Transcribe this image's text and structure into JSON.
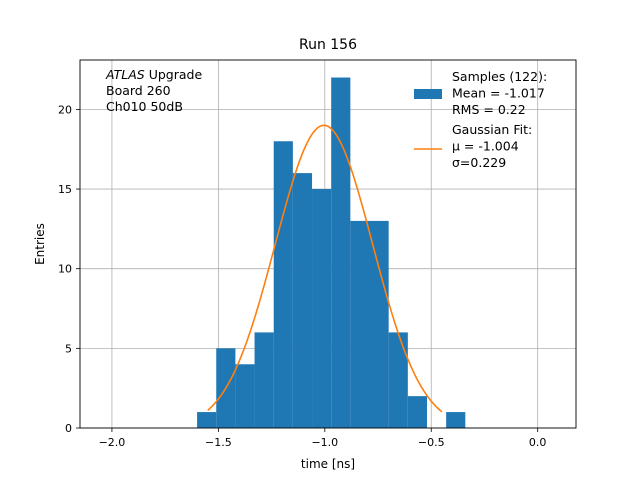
{
  "chart_data": {
    "type": "bar",
    "title": "Run 156",
    "xlabel": "time [ns]",
    "ylabel": "Entries",
    "xlim": [
      -2.15,
      0.18
    ],
    "ylim": [
      0,
      23.1
    ],
    "xticks": [
      -2.0,
      -1.5,
      -1.0,
      -0.5,
      0.0
    ],
    "xtick_labels": [
      "−2.0",
      "−1.5",
      "−1.0",
      "−0.5",
      "0.0"
    ],
    "yticks": [
      0,
      5,
      10,
      15,
      20
    ],
    "ytick_labels": [
      "0",
      "5",
      "10",
      "15",
      "20"
    ],
    "grid": true,
    "legend_position": "top-right",
    "bar_color": "#1f77b4",
    "fit_color": "#ff7f0e",
    "annotation": {
      "lines": [
        {
          "italic": "ATLAS",
          "rest": " Upgrade"
        },
        {
          "italic": "",
          "rest": " Board 260"
        },
        {
          "italic": "",
          "rest": " Ch010 50dB"
        }
      ]
    },
    "histogram": {
      "bin_edges": [
        -1.6,
        -1.51,
        -1.42,
        -1.33,
        -1.24,
        -1.15,
        -1.06,
        -0.97,
        -0.88,
        -0.79,
        -0.7,
        -0.61,
        -0.52,
        -0.43,
        -0.34
      ],
      "counts": [
        1,
        5,
        4,
        6,
        18,
        16,
        15,
        22,
        13,
        13,
        6,
        2,
        0,
        1
      ],
      "legend": [
        "Samples (122):",
        " Mean = -1.017",
        " RMS = 0.22"
      ]
    },
    "fit": {
      "mu": -1.004,
      "sigma": 0.229,
      "amplitude": 19.0,
      "x_range": [
        -1.55,
        -0.45
      ],
      "legend": [
        "Gaussian Fit:",
        " μ = -1.004",
        " σ=0.229"
      ]
    }
  }
}
